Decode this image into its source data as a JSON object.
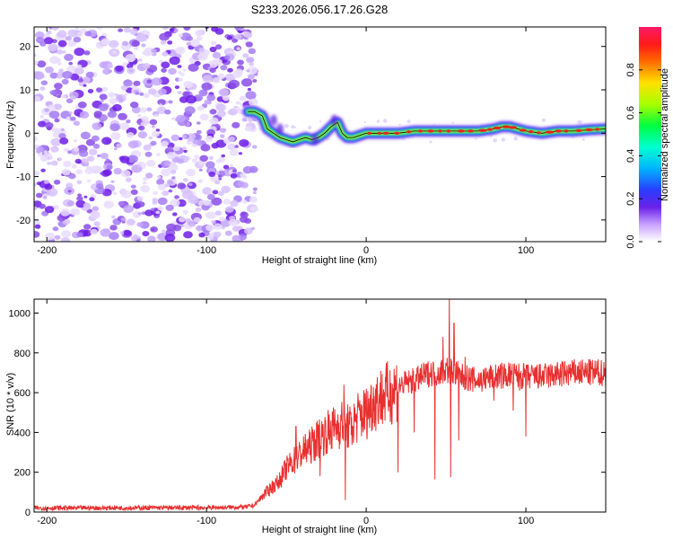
{
  "figure_title": "S233.2026.056.17.26.G28",
  "colors": {
    "snr_line": "#e83030",
    "frame": "#000000",
    "spectrogram_noise": "#8a4ce8",
    "ridge_core": "#e8231d"
  },
  "chart_data": [
    {
      "type": "heatmap",
      "name": "spectrogram",
      "title": "S233.2026.056.17.26.G28",
      "xlabel": "Height of straight line (km)",
      "ylabel": "Frequency (Hz)",
      "xlim": [
        -208,
        150
      ],
      "ylim": [
        -25,
        24.5
      ],
      "xticks": [
        -200,
        -100,
        0,
        100
      ],
      "yticks": [
        -20,
        -10,
        0,
        10,
        20
      ],
      "xtick_labels": [
        "-200",
        "-100",
        "0",
        "100"
      ],
      "ytick_labels": [
        "-20",
        "-10",
        "0",
        "10",
        "20"
      ],
      "noise_region_x": [
        -208,
        -72
      ],
      "ridge": {
        "x": [
          -74,
          -70,
          -65,
          -62,
          -58,
          -54,
          -50,
          -46,
          -42,
          -38,
          -34,
          -30,
          -26,
          -22,
          -18,
          -15,
          -12,
          -8,
          -4,
          0,
          10,
          20,
          30,
          40,
          50,
          60,
          70,
          80,
          85,
          90,
          95,
          100,
          110,
          120,
          130,
          140,
          150
        ],
        "y": [
          5,
          5,
          4,
          1,
          0,
          -1,
          -1.5,
          -2,
          -1.5,
          -1,
          -1.5,
          -1,
          0,
          1.5,
          2.5,
          0,
          -1,
          -1,
          -0.5,
          0,
          0,
          0,
          0.5,
          0.5,
          0.5,
          0.5,
          0.5,
          1,
          1.5,
          1.5,
          1,
          0.5,
          0,
          0.5,
          0.5,
          0.8,
          1
        ]
      },
      "colorbar": {
        "label": "Normalized spectral amplitude",
        "range": [
          0,
          1
        ],
        "ticks": [
          0.0,
          0.2,
          0.4,
          0.6,
          0.8
        ],
        "tick_labels": [
          "0.0",
          "0.2",
          "0.4",
          "0.6",
          "0.8"
        ]
      }
    },
    {
      "type": "line",
      "name": "snr",
      "xlabel": "Height of straight line (km)",
      "ylabel": "SNR (10 * v/v)",
      "xlim": [
        -208,
        150
      ],
      "ylim": [
        0,
        1070
      ],
      "xticks": [
        -200,
        -100,
        0,
        100
      ],
      "yticks": [
        0,
        200,
        400,
        600,
        800,
        1000
      ],
      "xtick_labels": [
        "-200",
        "-100",
        "0",
        "100"
      ],
      "ytick_labels": [
        "0",
        "200",
        "400",
        "600",
        "800",
        "1000"
      ],
      "series": [
        {
          "name": "SNR",
          "x": [
            -208,
            -100,
            -75,
            -70,
            -65,
            -60,
            -55,
            -50,
            -45,
            -40,
            -35,
            -30,
            -25,
            -20,
            -15,
            -10,
            -5,
            0,
            5,
            10,
            15,
            20,
            25,
            30,
            35,
            40,
            45,
            50,
            55,
            60,
            70,
            80,
            90,
            100,
            110,
            120,
            130,
            140,
            150
          ],
          "values": [
            20,
            22,
            25,
            35,
            80,
            120,
            150,
            220,
            260,
            300,
            330,
            370,
            400,
            420,
            450,
            420,
            480,
            500,
            560,
            580,
            600,
            630,
            650,
            660,
            680,
            700,
            700,
            720,
            700,
            680,
            660,
            680,
            690,
            680,
            680,
            690,
            700,
            700,
            700
          ],
          "spikes": [
            {
              "x": -44,
              "y": 430
            },
            {
              "x": -30,
              "y": 440
            },
            {
              "x": -29,
              "y": 180
            },
            {
              "x": -14,
              "y": 640
            },
            {
              "x": -13,
              "y": 60
            },
            {
              "x": 20,
              "y": 200
            },
            {
              "x": 30,
              "y": 400
            },
            {
              "x": 43,
              "y": 165
            },
            {
              "x": 48,
              "y": 880
            },
            {
              "x": 52,
              "y": 1070
            },
            {
              "x": 53,
              "y": 175
            },
            {
              "x": 55,
              "y": 950
            },
            {
              "x": 58,
              "y": 360
            },
            {
              "x": 62,
              "y": 780
            },
            {
              "x": 80,
              "y": 560
            },
            {
              "x": 92,
              "y": 510
            },
            {
              "x": 96,
              "y": 610
            },
            {
              "x": 100,
              "y": 380
            }
          ]
        }
      ]
    }
  ]
}
